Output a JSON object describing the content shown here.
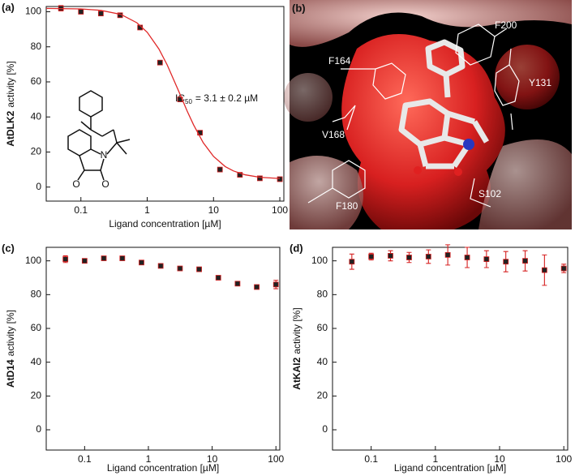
{
  "chart_data": [
    {
      "type": "scatter",
      "panel_label": "(a)",
      "ylabel_name": "AtDLK2",
      "ylabel": "activity [%]",
      "xlabel": "Ligand concentration [µM]",
      "xscale": "log",
      "xlim": [
        0.03,
        115
      ],
      "xticks": [
        0.1,
        1,
        10,
        100
      ],
      "ylim": [
        -8,
        103
      ],
      "yticks": [
        0,
        20,
        40,
        60,
        80,
        100
      ],
      "annotation": {
        "text": "IC",
        "sub": "50",
        "rest": "= 3.1 ± 0.2 µM"
      },
      "structure_atoms": [
        "N",
        "O",
        "O"
      ],
      "series": [
        {
          "style": "points",
          "color": "#d62020",
          "marker_color": "#222222",
          "x": [
            0.05,
            0.1,
            0.2,
            0.39,
            0.78,
            1.56,
            3.13,
            6.25,
            12.5,
            25,
            50,
            100
          ],
          "values": [
            102,
            100,
            99,
            98,
            91,
            71,
            50,
            31,
            10,
            7,
            5,
            4.5
          ],
          "errors": [
            1.5,
            1,
            0.5,
            1,
            1,
            1,
            1,
            1,
            0.5,
            0.5,
            0.5,
            0.5
          ]
        },
        {
          "style": "line",
          "color": "#e02828",
          "x": [
            0.03,
            0.1,
            0.2,
            0.4,
            0.7,
            1,
            1.5,
            2,
            3,
            4,
            5,
            7,
            10,
            15,
            20,
            30,
            50,
            100
          ],
          "values": [
            101.9,
            101.6,
            100.8,
            98.5,
            93.7,
            88.3,
            78.8,
            69.7,
            54.5,
            43.4,
            35.5,
            25.3,
            17.5,
            11.7,
            9.2,
            7.0,
            5.6,
            4.9
          ]
        }
      ]
    },
    {
      "type": "scatter",
      "panel_label": "(c)",
      "ylabel_name": "AtD14",
      "ylabel": "activity [%]",
      "xlabel": "Ligand concentration [µM]",
      "xscale": "log",
      "xlim": [
        0.025,
        115
      ],
      "xticks": [
        0.1,
        1,
        10,
        100
      ],
      "ylim": [
        -12,
        108
      ],
      "yticks": [
        0,
        20,
        40,
        60,
        80,
        100
      ],
      "series": [
        {
          "style": "points",
          "color": "#d62020",
          "marker_color": "#222222",
          "x": [
            0.05,
            0.1,
            0.2,
            0.39,
            0.78,
            1.56,
            3.13,
            6.25,
            12.5,
            25,
            50,
            100
          ],
          "values": [
            101,
            100,
            101.5,
            101.5,
            99,
            97,
            95.5,
            95,
            90,
            86.5,
            84.5,
            86
          ],
          "errors": [
            2,
            1,
            0.5,
            0.5,
            0.5,
            0.5,
            0.5,
            0.5,
            0.5,
            1,
            0.5,
            2.5
          ]
        }
      ]
    },
    {
      "type": "scatter",
      "panel_label": "(d)",
      "ylabel_name": "AtKAI2",
      "ylabel": "activity [%]",
      "xlabel": "Ligand concentration [µM]",
      "xscale": "log",
      "xlim": [
        0.025,
        115
      ],
      "xticks": [
        0.1,
        1,
        10,
        100
      ],
      "ylim": [
        -12,
        108
      ],
      "yticks": [
        0,
        20,
        40,
        60,
        80,
        100
      ],
      "series": [
        {
          "style": "points",
          "color": "#d62020",
          "marker_color": "#222222",
          "x": [
            0.05,
            0.1,
            0.2,
            0.39,
            0.78,
            1.56,
            3.13,
            6.25,
            12.5,
            25,
            50,
            100
          ],
          "values": [
            99.5,
            102.5,
            103,
            102,
            102.5,
            103.5,
            102,
            101,
            99.5,
            100,
            94.5,
            95.5
          ],
          "errors": [
            4.5,
            2,
            3,
            3,
            4,
            6,
            6,
            5,
            6,
            6,
            9,
            2.5
          ]
        }
      ]
    }
  ],
  "structure_panel": {
    "panel_label": "(b)",
    "residues": [
      "F200",
      "F164",
      "Y131",
      "V168",
      "F180",
      "S102"
    ]
  }
}
